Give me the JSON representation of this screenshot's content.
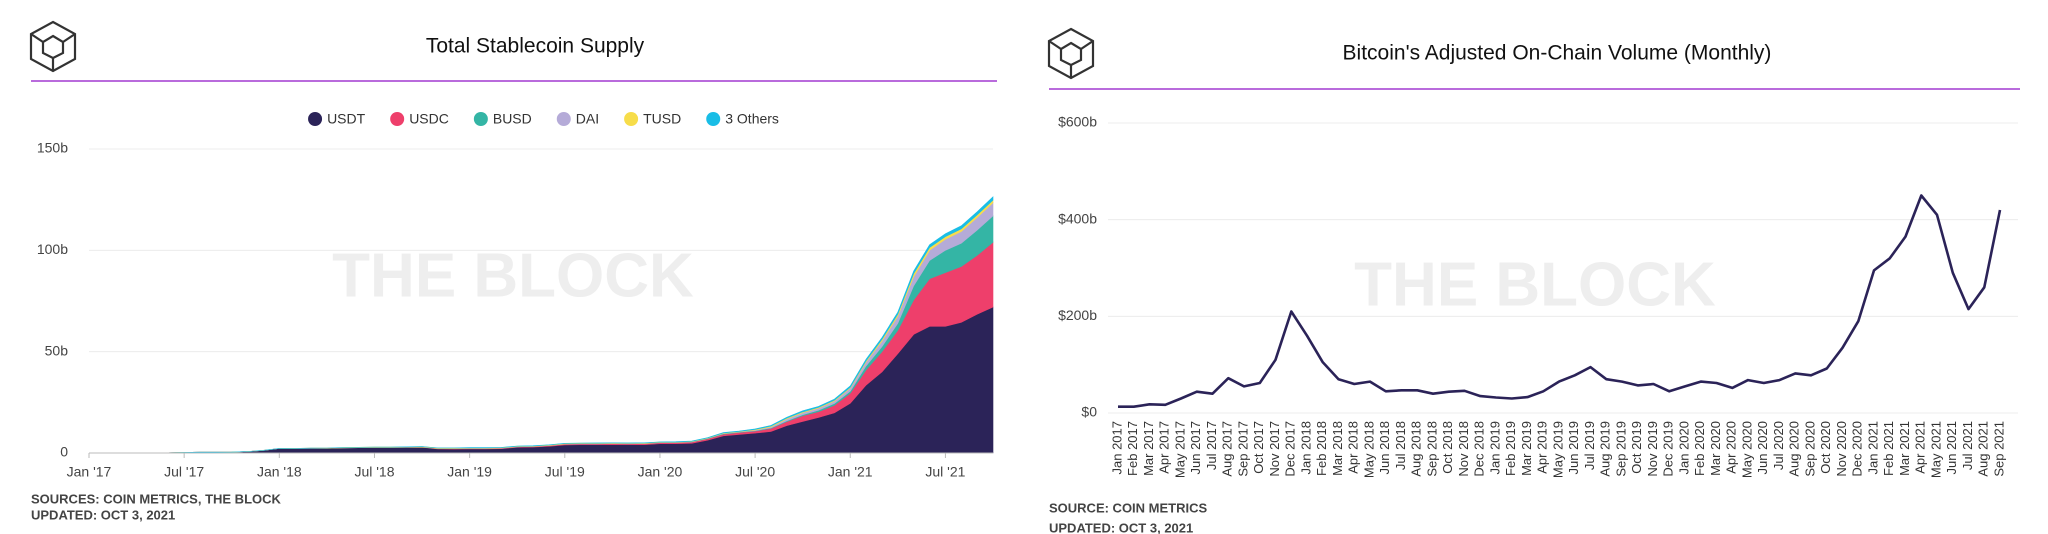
{
  "chart_data": [
    {
      "type": "area",
      "stacked": true,
      "title": "Total Stablecoin Supply",
      "watermark": "THE BLOCK",
      "source": "SOURCES: COIN METRICS, THE BLOCK",
      "updated": "UPDATED: OCT 3, 2021",
      "legend": "top",
      "x": [
        "2017-01",
        "2017-02",
        "2017-03",
        "2017-04",
        "2017-05",
        "2017-06",
        "2017-07",
        "2017-08",
        "2017-09",
        "2017-10",
        "2017-11",
        "2017-12",
        "2018-01",
        "2018-02",
        "2018-03",
        "2018-04",
        "2018-05",
        "2018-06",
        "2018-07",
        "2018-08",
        "2018-09",
        "2018-10",
        "2018-11",
        "2018-12",
        "2019-01",
        "2019-02",
        "2019-03",
        "2019-04",
        "2019-05",
        "2019-06",
        "2019-07",
        "2019-08",
        "2019-09",
        "2019-10",
        "2019-11",
        "2019-12",
        "2020-01",
        "2020-02",
        "2020-03",
        "2020-04",
        "2020-05",
        "2020-06",
        "2020-07",
        "2020-08",
        "2020-09",
        "2020-10",
        "2020-11",
        "2020-12",
        "2021-01",
        "2021-02",
        "2021-03",
        "2021-04",
        "2021-05",
        "2021-06",
        "2021-07",
        "2021-08",
        "2021-09",
        "2021-10"
      ],
      "series": [
        {
          "name": "USDT",
          "color": "#2b2358",
          "values": [
            0.01,
            0.02,
            0.05,
            0.05,
            0.1,
            0.1,
            0.3,
            0.4,
            0.4,
            0.45,
            0.7,
            1.3,
            2.2,
            2.2,
            2.3,
            2.3,
            2.5,
            2.6,
            2.7,
            2.7,
            2.8,
            2.8,
            2.0,
            1.9,
            2.0,
            2.0,
            2.1,
            2.8,
            2.9,
            3.3,
            4.0,
            4.1,
            4.1,
            4.1,
            4.1,
            4.1,
            4.6,
            4.6,
            4.8,
            6.3,
            8.5,
            9.2,
            9.8,
            10.6,
            13.5,
            15.6,
            17.5,
            19.8,
            24.5,
            33.5,
            40.0,
            49.0,
            58.5,
            62.5,
            62.5,
            64.5,
            68.5,
            72.0
          ]
        },
        {
          "name": "USDC",
          "color": "#ee3f6b",
          "values": [
            0,
            0,
            0,
            0,
            0,
            0,
            0,
            0,
            0,
            0,
            0,
            0,
            0,
            0,
            0,
            0,
            0,
            0,
            0,
            0,
            0,
            0.05,
            0.15,
            0.25,
            0.25,
            0.25,
            0.25,
            0.25,
            0.3,
            0.35,
            0.4,
            0.45,
            0.45,
            0.5,
            0.45,
            0.5,
            0.5,
            0.55,
            0.6,
            0.7,
            0.8,
            0.9,
            1.0,
            1.5,
            2.0,
            2.8,
            2.9,
            3.8,
            5.0,
            7.5,
            10.0,
            11.5,
            17.0,
            23.5,
            26.5,
            27.5,
            29.0,
            32.0
          ]
        },
        {
          "name": "BUSD",
          "color": "#34b5a5",
          "values": [
            0,
            0,
            0,
            0,
            0,
            0,
            0,
            0,
            0,
            0,
            0,
            0,
            0,
            0,
            0,
            0,
            0,
            0,
            0,
            0,
            0,
            0,
            0,
            0,
            0,
            0,
            0,
            0,
            0,
            0,
            0,
            0,
            0.01,
            0.02,
            0.03,
            0.03,
            0.05,
            0.06,
            0.1,
            0.15,
            0.2,
            0.2,
            0.2,
            0.3,
            0.4,
            0.5,
            0.7,
            0.8,
            1.0,
            2.0,
            2.5,
            3.5,
            7.0,
            9.0,
            11.0,
            11.5,
            12.5,
            13.0
          ]
        },
        {
          "name": "DAI",
          "color": "#b5abd8",
          "values": [
            0,
            0,
            0,
            0,
            0,
            0,
            0,
            0,
            0,
            0,
            0,
            0.01,
            0.02,
            0.04,
            0.05,
            0.06,
            0.06,
            0.07,
            0.07,
            0.07,
            0.08,
            0.09,
            0.1,
            0.1,
            0.1,
            0.1,
            0.1,
            0.1,
            0.1,
            0.1,
            0.1,
            0.1,
            0.1,
            0.1,
            0.1,
            0.1,
            0.1,
            0.1,
            0.1,
            0.1,
            0.15,
            0.15,
            0.3,
            0.45,
            0.9,
            1.0,
            1.0,
            1.2,
            1.5,
            1.9,
            2.7,
            3.5,
            4.5,
            5.0,
            5.5,
            5.8,
            6.2,
            6.5
          ]
        },
        {
          "name": "TUSD",
          "color": "#f7dd4a",
          "values": [
            0,
            0,
            0,
            0,
            0,
            0,
            0,
            0,
            0,
            0,
            0,
            0,
            0.01,
            0.02,
            0.05,
            0.1,
            0.1,
            0.12,
            0.12,
            0.15,
            0.15,
            0.2,
            0.2,
            0.2,
            0.2,
            0.2,
            0.2,
            0.2,
            0.2,
            0.2,
            0.2,
            0.2,
            0.2,
            0.2,
            0.2,
            0.2,
            0.15,
            0.15,
            0.15,
            0.15,
            0.2,
            0.2,
            0.3,
            0.4,
            0.4,
            0.4,
            0.4,
            0.4,
            0.4,
            0.6,
            0.9,
            1.0,
            1.5,
            1.4,
            1.3,
            1.3,
            1.3,
            1.3
          ]
        },
        {
          "name": "3 Others",
          "color": "#19bde6",
          "values": [
            0.01,
            0.01,
            0.01,
            0.01,
            0.01,
            0.01,
            0.01,
            0.01,
            0.01,
            0.01,
            0.01,
            0.01,
            0.02,
            0.02,
            0.02,
            0.02,
            0.02,
            0.02,
            0.03,
            0.03,
            0.04,
            0.05,
            0.05,
            0.05,
            0.1,
            0.1,
            0.1,
            0.1,
            0.1,
            0.1,
            0.1,
            0.1,
            0.1,
            0.1,
            0.1,
            0.1,
            0.1,
            0.1,
            0.1,
            0.15,
            0.2,
            0.2,
            0.3,
            0.35,
            0.4,
            0.5,
            0.5,
            0.6,
            0.7,
            0.8,
            0.9,
            1.0,
            1.3,
            1.4,
            1.4,
            1.5,
            1.5,
            1.6
          ]
        }
      ],
      "xticks": [
        {
          "value": "2017-01",
          "label": "Jan '17"
        },
        {
          "value": "2017-07",
          "label": "Jul '17"
        },
        {
          "value": "2018-01",
          "label": "Jan '18"
        },
        {
          "value": "2018-07",
          "label": "Jul '18"
        },
        {
          "value": "2019-01",
          "label": "Jan '19"
        },
        {
          "value": "2019-07",
          "label": "Jul '19"
        },
        {
          "value": "2020-01",
          "label": "Jan '20"
        },
        {
          "value": "2020-07",
          "label": "Jul '20"
        },
        {
          "value": "2021-01",
          "label": "Jan '21"
        },
        {
          "value": "2021-07",
          "label": "Jul '21"
        }
      ],
      "ylim": [
        0,
        150
      ],
      "yticks": [
        0,
        {
          "value": 50,
          "label": "50b"
        },
        {
          "value": 100,
          "label": "100b"
        },
        {
          "value": 150,
          "label": "150b"
        }
      ],
      "grid": true
    },
    {
      "type": "line",
      "title": "Bitcoin's Adjusted On-Chain Volume (Monthly)",
      "watermark": "THE BLOCK",
      "source": "SOURCE: COIN METRICS",
      "updated": "UPDATED: OCT 3, 2021",
      "color": "#2b2358",
      "categories": [
        "Jan 2017",
        "Feb 2017",
        "Mar 2017",
        "Apr 2017",
        "May 2017",
        "Jun 2017",
        "Jul 2017",
        "Aug 2017",
        "Sep 2017",
        "Oct 2017",
        "Nov 2017",
        "Dec 2017",
        "Jan 2018",
        "Feb 2018",
        "Mar 2018",
        "Apr 2018",
        "May 2018",
        "Jun 2018",
        "Jul 2018",
        "Aug 2018",
        "Sep 2018",
        "Oct 2018",
        "Nov 2018",
        "Dec 2018",
        "Jan 2019",
        "Feb 2019",
        "Mar 2019",
        "Apr 2019",
        "May 2019",
        "Jun 2019",
        "Jul 2019",
        "Aug 2019",
        "Sep 2019",
        "Oct 2019",
        "Nov 2019",
        "Dec 2019",
        "Jan 2020",
        "Feb 2020",
        "Mar 2020",
        "Apr 2020",
        "May 2020",
        "Jun 2020",
        "Jul 2020",
        "Aug 2020",
        "Sep 2020",
        "Oct 2020",
        "Nov 2020",
        "Dec 2020",
        "Jan 2021",
        "Feb 2021",
        "Mar 2021",
        "Apr 2021",
        "May 2021",
        "Jun 2021",
        "Jul 2021",
        "Aug 2021",
        "Sep 2021"
      ],
      "values": [
        13,
        13,
        18,
        17,
        30,
        44,
        40,
        72,
        55,
        62,
        110,
        210,
        160,
        105,
        70,
        60,
        65,
        45,
        47,
        47,
        40,
        44,
        46,
        35,
        32,
        30,
        33,
        45,
        65,
        78,
        95,
        70,
        65,
        57,
        60,
        45,
        55,
        65,
        62,
        52,
        68,
        62,
        68,
        82,
        78,
        92,
        135,
        190,
        295,
        320,
        365,
        450,
        410,
        290,
        215,
        260,
        420
      ],
      "ylim": [
        0,
        600
      ],
      "yticks": [
        {
          "value": 0,
          "label": "$0"
        },
        {
          "value": 200,
          "label": "$200b"
        },
        {
          "value": 400,
          "label": "$400b"
        },
        {
          "value": 600,
          "label": "$600b"
        }
      ],
      "grid": true
    }
  ]
}
